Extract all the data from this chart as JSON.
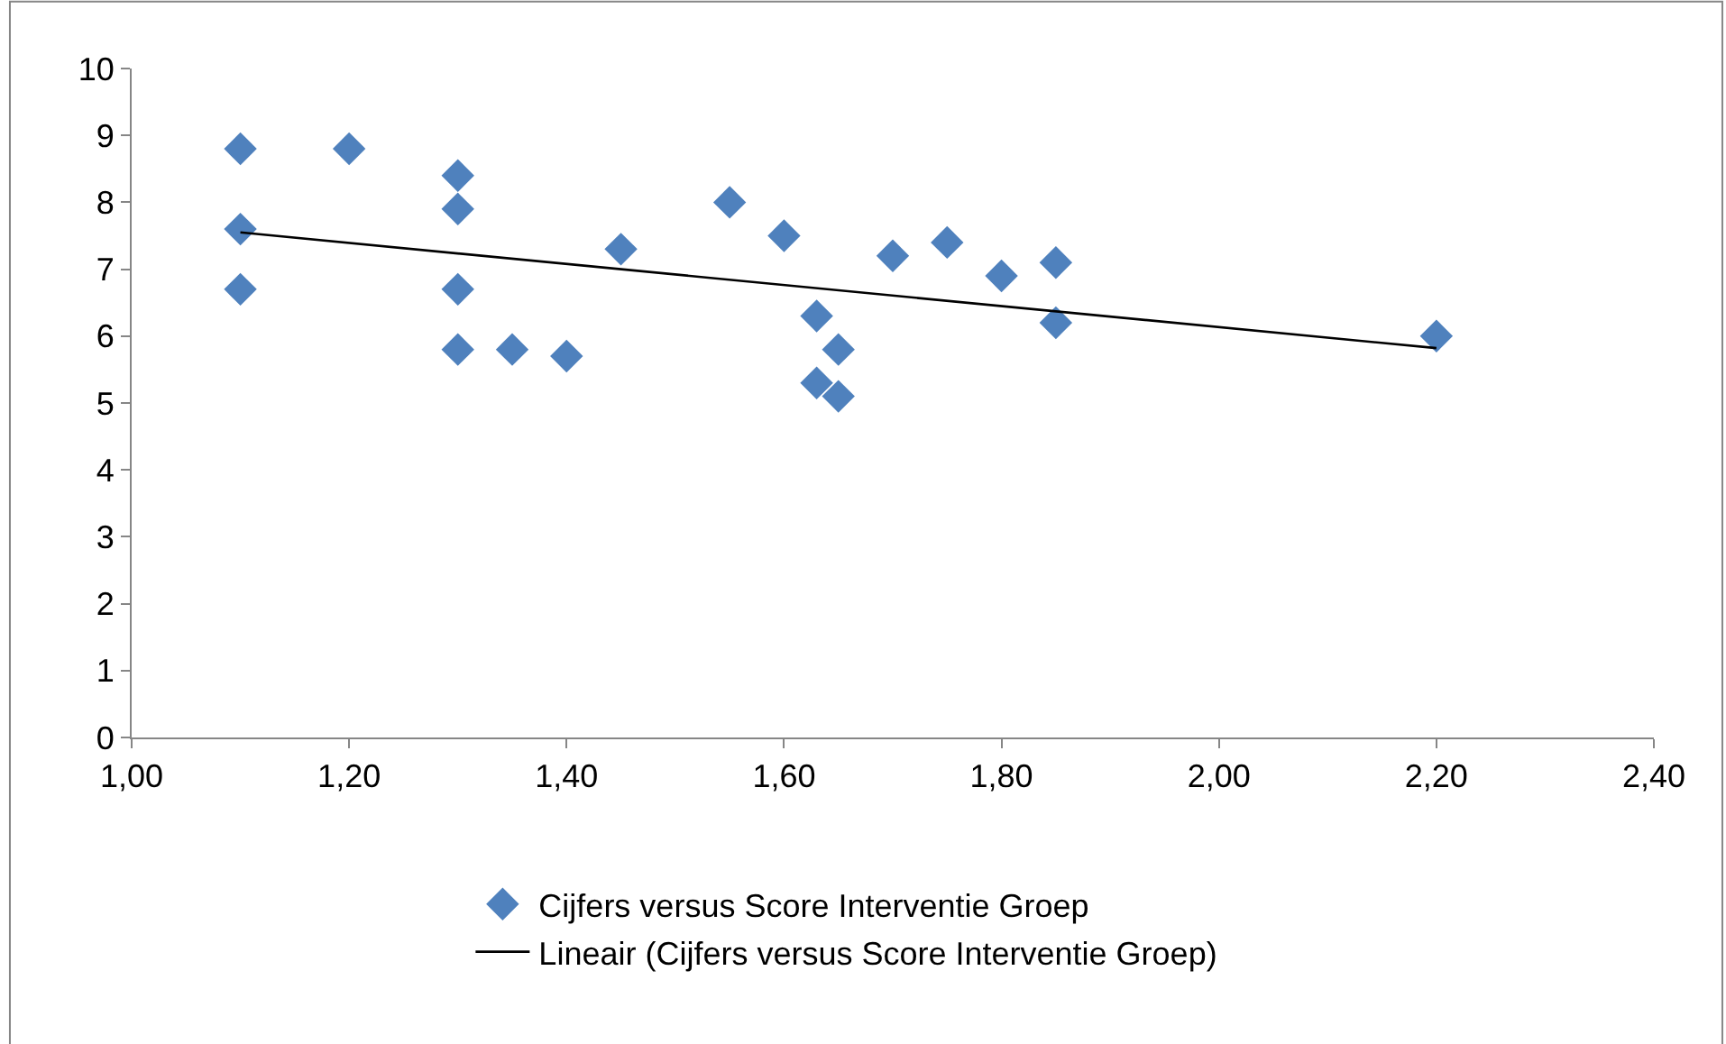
{
  "chart_data": {
    "type": "scatter",
    "marker": "diamond",
    "legend": "bottom",
    "xlim": [
      1.0,
      2.4
    ],
    "ylim": [
      0,
      10
    ],
    "xticks": [
      {
        "value": 1.0,
        "label": "1,00"
      },
      {
        "value": 1.2,
        "label": "1,20"
      },
      {
        "value": 1.4,
        "label": "1,40"
      },
      {
        "value": 1.6,
        "label": "1,60"
      },
      {
        "value": 1.8,
        "label": "1,80"
      },
      {
        "value": 2.0,
        "label": "2,00"
      },
      {
        "value": 2.2,
        "label": "2,20"
      },
      {
        "value": 2.4,
        "label": "2,40"
      }
    ],
    "yticks": [
      0,
      1,
      2,
      3,
      4,
      5,
      6,
      7,
      8,
      9,
      10
    ],
    "series": [
      {
        "name": "Cijfers versus Score Interventie Groep",
        "color": "#4f81bd",
        "x": [
          1.1,
          1.1,
          1.1,
          1.2,
          1.3,
          1.3,
          1.3,
          1.3,
          1.35,
          1.4,
          1.45,
          1.55,
          1.6,
          1.63,
          1.63,
          1.65,
          1.65,
          1.7,
          1.75,
          1.8,
          1.85,
          1.85,
          2.2
        ],
        "values": [
          8.8,
          7.6,
          6.7,
          8.8,
          8.4,
          7.9,
          6.7,
          5.8,
          5.8,
          5.7,
          7.3,
          8.0,
          7.5,
          6.3,
          5.3,
          5.8,
          5.1,
          7.2,
          7.4,
          6.9,
          7.1,
          6.2,
          6.0
        ]
      },
      {
        "name": "Lineair (Cijfers versus Score Interventie Groep)",
        "type": "line",
        "marker": "none",
        "line_style": "solid",
        "color": "#000000",
        "x": [
          1.1,
          2.2
        ],
        "values": [
          7.55,
          5.82
        ]
      }
    ]
  }
}
